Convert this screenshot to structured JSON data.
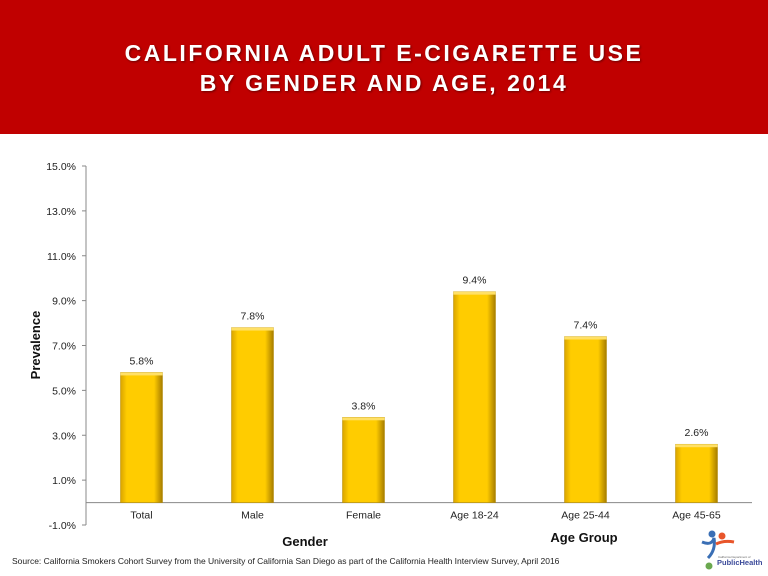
{
  "header": {
    "title_line1": "CALIFORNIA ADULT E-CIGARETTE USE",
    "title_line2": "BY GENDER AND AGE, 2014",
    "background": "#c00000"
  },
  "chart_data": {
    "type": "bar",
    "title": "CALIFORNIA ADULT E-CIGARETTE USE BY GENDER AND AGE, 2014",
    "categories": [
      "Total",
      "Male",
      "Female",
      "Age 18-24",
      "Age 25-44",
      "Age 45-65"
    ],
    "values": [
      5.8,
      7.8,
      3.8,
      9.4,
      7.4,
      2.6
    ],
    "data_labels": [
      "5.8%",
      "7.8%",
      "3.8%",
      "9.4%",
      "7.4%",
      "2.6%"
    ],
    "ylabel": "Prevalence",
    "group_labels": [
      "Gender",
      "Age Group"
    ],
    "ylim": [
      -1,
      15
    ],
    "yticks": [
      -1,
      1,
      3,
      5,
      7,
      9,
      11,
      13,
      15
    ],
    "ytick_labels": [
      "-1.0%",
      "1.0%",
      "3.0%",
      "5.0%",
      "7.0%",
      "9.0%",
      "11.0%",
      "13.0%",
      "15.0%"
    ],
    "grid": false,
    "bar_color": "#ffcc00"
  },
  "footer": {
    "source": "Source: California Smokers Cohort Survey from the University of California San Diego as part of the California Health Interview Survey, April 2016",
    "logo_text": "California Department of PublicHealth"
  }
}
